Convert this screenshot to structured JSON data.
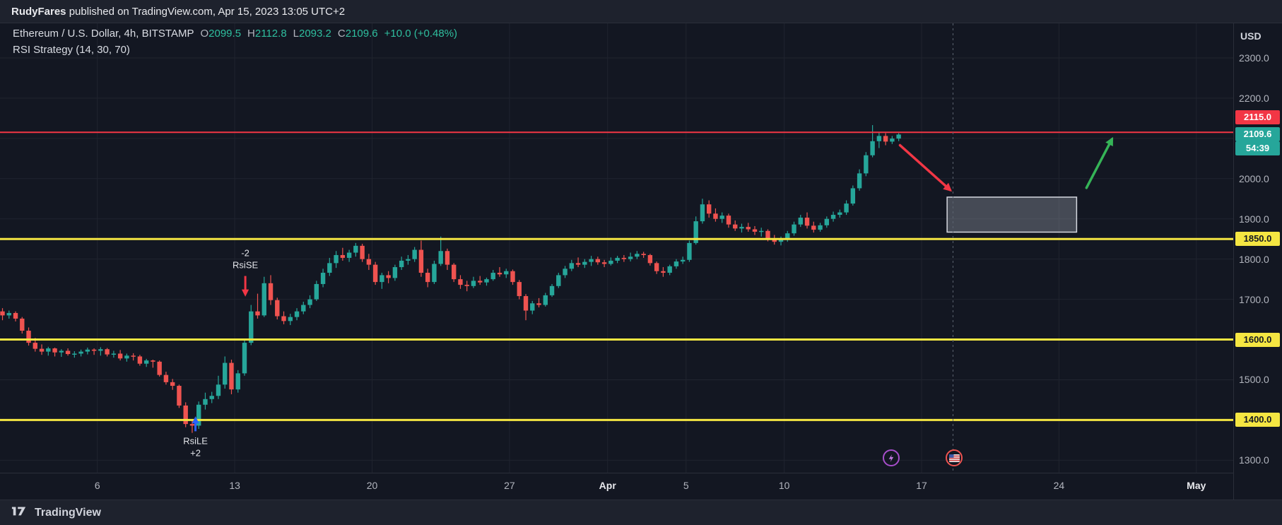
{
  "publish_bar": {
    "user": "RudyFares",
    "rest": " published on TradingView.com, Apr 15, 2023 13:05 UTC+2"
  },
  "legend": {
    "title": "Ethereum / U.S. Dollar, 4h, BITSTAMP",
    "ohlc": [
      {
        "k": "O",
        "v": "2099.5"
      },
      {
        "k": "H",
        "v": "2112.8"
      },
      {
        "k": "L",
        "v": "2093.2"
      },
      {
        "k": "C",
        "v": "2109.6"
      }
    ],
    "change": "+10.0 (+0.48%)",
    "indicator": "RSI Strategy (14, 30, 70)"
  },
  "price_axis": {
    "currency": "USD",
    "labels": [
      {
        "text": "2300.0",
        "price": 2300
      },
      {
        "text": "2200.0",
        "price": 2200
      },
      {
        "text": "2000.0",
        "price": 2000
      },
      {
        "text": "1900.0",
        "price": 1900
      },
      {
        "text": "1800.0",
        "price": 1800
      },
      {
        "text": "1700.0",
        "price": 1700
      },
      {
        "text": "1500.0",
        "price": 1500
      },
      {
        "text": "1300.0",
        "price": 1300
      }
    ],
    "badges": [
      {
        "text": "2115.0",
        "price": 2115,
        "bg": "#f23645",
        "fg": "#ffffff",
        "nudge": -21
      },
      {
        "text": "2109.6",
        "price": 2109.6,
        "bg": "#26a69a",
        "fg": "#ffffff",
        "nudge": 0
      },
      {
        "text": "54:39",
        "price": 2109.6,
        "bg": "#26a69a",
        "fg": "#ffffff",
        "nudge": 20
      },
      {
        "text": "1850.0",
        "price": 1850,
        "bg": "#f5e642",
        "fg": "#131722",
        "nudge": 0
      },
      {
        "text": "1600.0",
        "price": 1600,
        "bg": "#f5e642",
        "fg": "#131722",
        "nudge": 0
      },
      {
        "text": "1400.0",
        "price": 1400,
        "bg": "#f5e642",
        "fg": "#131722",
        "nudge": 0
      }
    ]
  },
  "time_axis": {
    "labels": [
      {
        "text": "6",
        "day": 5
      },
      {
        "text": "13",
        "day": 12
      },
      {
        "text": "20",
        "day": 19
      },
      {
        "text": "27",
        "day": 26
      },
      {
        "text": "Apr",
        "day": 31,
        "major": true
      },
      {
        "text": "5",
        "day": 35
      },
      {
        "text": "10",
        "day": 40
      },
      {
        "text": "17",
        "day": 47
      },
      {
        "text": "24",
        "day": 54
      },
      {
        "text": "May",
        "day": 61,
        "major": true
      }
    ]
  },
  "footer": {
    "brand": "TradingView"
  },
  "colors": {
    "background": "#131722",
    "grid": "#20242f",
    "up": "#26a69a",
    "down": "#ef5350",
    "yellow": "#f5e642",
    "red": "#f23645",
    "green_arrow": "#35b457",
    "blue": "#2962ff",
    "box_fill": "rgba(164,169,180,0.35)",
    "box_border": "#d5d8e0",
    "annotation_text": "#e3e5ea",
    "dashed_line": "#5c6370"
  },
  "chart_data": {
    "type": "candlestick",
    "title": "Ethereum / U.S. Dollar, 4h, BITSTAMP",
    "ylabel": "USD",
    "ylim": [
      1269,
      2386
    ],
    "xlim_days": [
      0.04,
      62.88
    ],
    "grid": true,
    "h_gridlines": [
      2300,
      2200,
      2100,
      2000,
      1900,
      1800,
      1700,
      1600,
      1500,
      1400,
      1300
    ],
    "v_gridline_days": [
      5,
      12,
      19,
      26,
      31,
      35,
      40,
      47,
      54,
      61
    ],
    "price_lines": [
      {
        "price": 2115,
        "color": "#f23645",
        "width": 2
      },
      {
        "price": 1850,
        "color": "#f5e642",
        "width": 3
      },
      {
        "price": 1600,
        "color": "#f5e642",
        "width": 3
      },
      {
        "price": 1400,
        "color": "#f5e642",
        "width": 3
      }
    ],
    "last_price": 2109.6,
    "countdown": "54:39",
    "candles": [
      [
        1670,
        1678,
        1648,
        1660
      ],
      [
        1660,
        1672,
        1652,
        1666
      ],
      [
        1666,
        1670,
        1645,
        1652
      ],
      [
        1652,
        1656,
        1615,
        1622
      ],
      [
        1622,
        1630,
        1585,
        1592
      ],
      [
        1592,
        1604,
        1570,
        1577
      ],
      [
        1577,
        1588,
        1562,
        1570
      ],
      [
        1570,
        1582,
        1560,
        1578
      ],
      [
        1578,
        1580,
        1558,
        1568
      ],
      [
        1568,
        1576,
        1557,
        1572
      ],
      [
        1572,
        1578,
        1560,
        1564
      ],
      [
        1564,
        1571,
        1555,
        1565
      ],
      [
        1565,
        1575,
        1558,
        1570
      ],
      [
        1570,
        1580,
        1563,
        1575
      ],
      [
        1575,
        1578,
        1562,
        1572
      ],
      [
        1572,
        1581,
        1560,
        1576
      ],
      [
        1576,
        1579,
        1558,
        1563
      ],
      [
        1563,
        1572,
        1555,
        1565
      ],
      [
        1565,
        1574,
        1548,
        1553
      ],
      [
        1553,
        1565,
        1545,
        1560
      ],
      [
        1560,
        1566,
        1548,
        1558
      ],
      [
        1558,
        1562,
        1535,
        1540
      ],
      [
        1540,
        1552,
        1532,
        1548
      ],
      [
        1548,
        1550,
        1530,
        1545
      ],
      [
        1545,
        1548,
        1508,
        1512
      ],
      [
        1512,
        1520,
        1488,
        1494
      ],
      [
        1494,
        1502,
        1475,
        1485
      ],
      [
        1485,
        1488,
        1430,
        1436
      ],
      [
        1436,
        1444,
        1382,
        1390
      ],
      [
        1390,
        1400,
        1368,
        1386
      ],
      [
        1386,
        1446,
        1378,
        1438
      ],
      [
        1438,
        1468,
        1426,
        1452
      ],
      [
        1452,
        1470,
        1442,
        1460
      ],
      [
        1460,
        1510,
        1452,
        1488
      ],
      [
        1488,
        1558,
        1478,
        1542
      ],
      [
        1542,
        1550,
        1464,
        1476
      ],
      [
        1476,
        1524,
        1468,
        1516
      ],
      [
        1516,
        1600,
        1510,
        1592
      ],
      [
        1592,
        1686,
        1586,
        1670
      ],
      [
        1670,
        1714,
        1652,
        1660
      ],
      [
        1660,
        1756,
        1656,
        1740
      ],
      [
        1740,
        1760,
        1686,
        1698
      ],
      [
        1698,
        1704,
        1650,
        1658
      ],
      [
        1658,
        1670,
        1638,
        1646
      ],
      [
        1646,
        1664,
        1636,
        1656
      ],
      [
        1656,
        1678,
        1648,
        1670
      ],
      [
        1670,
        1694,
        1663,
        1686
      ],
      [
        1686,
        1710,
        1678,
        1700
      ],
      [
        1700,
        1746,
        1696,
        1738
      ],
      [
        1738,
        1776,
        1730,
        1766
      ],
      [
        1766,
        1803,
        1758,
        1790
      ],
      [
        1790,
        1820,
        1778,
        1810
      ],
      [
        1810,
        1828,
        1796,
        1803
      ],
      [
        1803,
        1823,
        1793,
        1816
      ],
      [
        1816,
        1840,
        1806,
        1833
      ],
      [
        1833,
        1838,
        1793,
        1800
      ],
      [
        1800,
        1813,
        1773,
        1786
      ],
      [
        1786,
        1793,
        1736,
        1743
      ],
      [
        1743,
        1766,
        1726,
        1760
      ],
      [
        1760,
        1770,
        1740,
        1753
      ],
      [
        1753,
        1786,
        1746,
        1780
      ],
      [
        1780,
        1806,
        1773,
        1796
      ],
      [
        1796,
        1810,
        1786,
        1800
      ],
      [
        1800,
        1830,
        1793,
        1823
      ],
      [
        1823,
        1846,
        1756,
        1766
      ],
      [
        1766,
        1776,
        1730,
        1743
      ],
      [
        1743,
        1796,
        1738,
        1788
      ],
      [
        1788,
        1856,
        1783,
        1820
      ],
      [
        1820,
        1826,
        1773,
        1786
      ],
      [
        1786,
        1790,
        1743,
        1750
      ],
      [
        1750,
        1760,
        1726,
        1736
      ],
      [
        1736,
        1746,
        1720,
        1733
      ],
      [
        1733,
        1756,
        1728,
        1746
      ],
      [
        1746,
        1758,
        1736,
        1742
      ],
      [
        1742,
        1754,
        1734,
        1750
      ],
      [
        1750,
        1773,
        1746,
        1766
      ],
      [
        1766,
        1780,
        1756,
        1762
      ],
      [
        1762,
        1776,
        1753,
        1770
      ],
      [
        1770,
        1774,
        1736,
        1743
      ],
      [
        1743,
        1748,
        1700,
        1708
      ],
      [
        1708,
        1713,
        1648,
        1672
      ],
      [
        1672,
        1696,
        1663,
        1690
      ],
      [
        1690,
        1703,
        1680,
        1686
      ],
      [
        1686,
        1716,
        1682,
        1710
      ],
      [
        1710,
        1738,
        1706,
        1733
      ],
      [
        1733,
        1766,
        1728,
        1760
      ],
      [
        1760,
        1783,
        1753,
        1776
      ],
      [
        1776,
        1798,
        1770,
        1790
      ],
      [
        1790,
        1804,
        1780,
        1786
      ],
      [
        1786,
        1800,
        1778,
        1793
      ],
      [
        1793,
        1808,
        1783,
        1800
      ],
      [
        1800,
        1806,
        1786,
        1792
      ],
      [
        1792,
        1798,
        1780,
        1788
      ],
      [
        1788,
        1804,
        1784,
        1796
      ],
      [
        1796,
        1808,
        1790,
        1803
      ],
      [
        1803,
        1810,
        1793,
        1800
      ],
      [
        1800,
        1816,
        1794,
        1806
      ],
      [
        1806,
        1820,
        1800,
        1813
      ],
      [
        1813,
        1818,
        1803,
        1810
      ],
      [
        1810,
        1813,
        1784,
        1790
      ],
      [
        1790,
        1794,
        1763,
        1770
      ],
      [
        1770,
        1780,
        1756,
        1766
      ],
      [
        1766,
        1786,
        1760,
        1782
      ],
      [
        1782,
        1800,
        1776,
        1794
      ],
      [
        1794,
        1806,
        1788,
        1798
      ],
      [
        1798,
        1846,
        1793,
        1840
      ],
      [
        1840,
        1906,
        1836,
        1894
      ],
      [
        1894,
        1950,
        1888,
        1936
      ],
      [
        1936,
        1946,
        1903,
        1913
      ],
      [
        1913,
        1926,
        1893,
        1900
      ],
      [
        1900,
        1916,
        1890,
        1908
      ],
      [
        1908,
        1913,
        1878,
        1886
      ],
      [
        1886,
        1896,
        1870,
        1876
      ],
      [
        1876,
        1888,
        1866,
        1880
      ],
      [
        1880,
        1890,
        1868,
        1874
      ],
      [
        1874,
        1882,
        1860,
        1868
      ],
      [
        1868,
        1878,
        1856,
        1870
      ],
      [
        1870,
        1874,
        1844,
        1850
      ],
      [
        1850,
        1860,
        1836,
        1843
      ],
      [
        1843,
        1856,
        1834,
        1848
      ],
      [
        1848,
        1870,
        1843,
        1864
      ],
      [
        1864,
        1893,
        1858,
        1886
      ],
      [
        1886,
        1910,
        1880,
        1903
      ],
      [
        1903,
        1916,
        1876,
        1883
      ],
      [
        1883,
        1893,
        1866,
        1873
      ],
      [
        1873,
        1890,
        1868,
        1884
      ],
      [
        1884,
        1906,
        1878,
        1900
      ],
      [
        1900,
        1918,
        1893,
        1910
      ],
      [
        1910,
        1923,
        1903,
        1916
      ],
      [
        1916,
        1946,
        1910,
        1938
      ],
      [
        1938,
        1983,
        1933,
        1976
      ],
      [
        1976,
        2023,
        1970,
        2013
      ],
      [
        2013,
        2066,
        2006,
        2058
      ],
      [
        2058,
        2133,
        2053,
        2093
      ],
      [
        2093,
        2116,
        2076,
        2106
      ],
      [
        2106,
        2113,
        2083,
        2092
      ],
      [
        2092,
        2106,
        2086,
        2099.5
      ],
      [
        2099.5,
        2112.8,
        2093.2,
        2109.6
      ]
    ],
    "annotations": {
      "long_entry_marker": {
        "labels": [
          "RsiLE",
          "+2"
        ],
        "day": 10.0,
        "tail_price": 1372,
        "tip_price": 1404,
        "color": "#2962ff"
      },
      "short_entry_marker": {
        "labels": [
          "-2",
          "RsiSE"
        ],
        "day": 12.54,
        "tail_price": 1758,
        "tip_price": 1712,
        "color": "#f23645"
      },
      "red_arrow": {
        "from_day": 45.9,
        "from_price": 2083,
        "to_day": 48.45,
        "to_price": 1972
      },
      "green_arrow": {
        "from_day": 55.4,
        "from_price": 1977,
        "to_day": 56.7,
        "to_price": 2098
      },
      "box": {
        "from_day": 48.3,
        "to_day": 54.9,
        "from_price": 1867,
        "to_price": 1954
      },
      "dashed_line_day": 48.6,
      "events": [
        {
          "icon": "lightning",
          "day": 45.46
        },
        {
          "icon": "us-flag",
          "day": 48.67
        }
      ]
    }
  }
}
